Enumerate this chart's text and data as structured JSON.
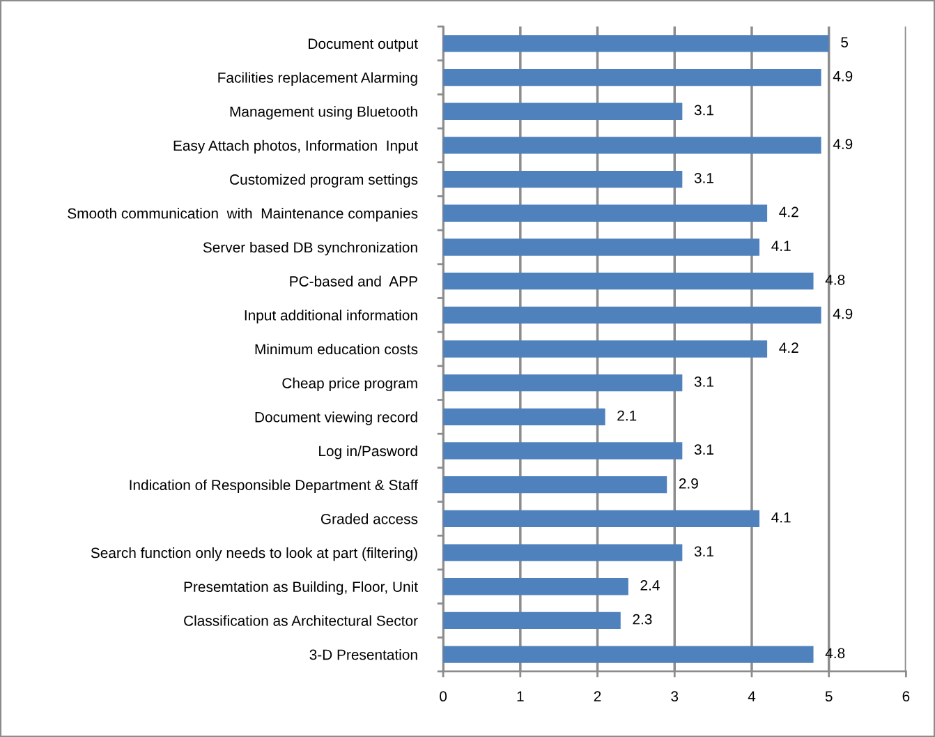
{
  "chart_data": {
    "type": "bar",
    "orientation": "horizontal",
    "categories": [
      "Document output",
      "Facilities replacement Alarming",
      "Management using Bluetooth",
      "Easy Attach photos, Information  Input",
      "Customized program settings",
      "Smooth communication  with  Maintenance companies",
      "Server based DB synchronization",
      "PC-based and  APP",
      "Input additional information",
      "Minimum education costs",
      "Cheap price program",
      "Document viewing record",
      "Log in/Pasword",
      "Indication of Responsible Department & Staff",
      "Graded access",
      "Search function only needs to look at part (filtering)",
      "Presemtation as Building, Floor, Unit",
      "Classification as Architectural Sector",
      "3-D Presentation"
    ],
    "values": [
      5,
      4.9,
      3.1,
      4.9,
      3.1,
      4.2,
      4.1,
      4.8,
      4.9,
      4.2,
      3.1,
      2.1,
      3.1,
      2.9,
      4.1,
      3.1,
      2.4,
      2.3,
      4.8
    ],
    "color": "#4f81bd",
    "data_labels": true,
    "xlim": [
      0,
      6
    ],
    "xticks": [
      0,
      1,
      2,
      3,
      4,
      5,
      6
    ],
    "grid": "x",
    "legend": false
  }
}
